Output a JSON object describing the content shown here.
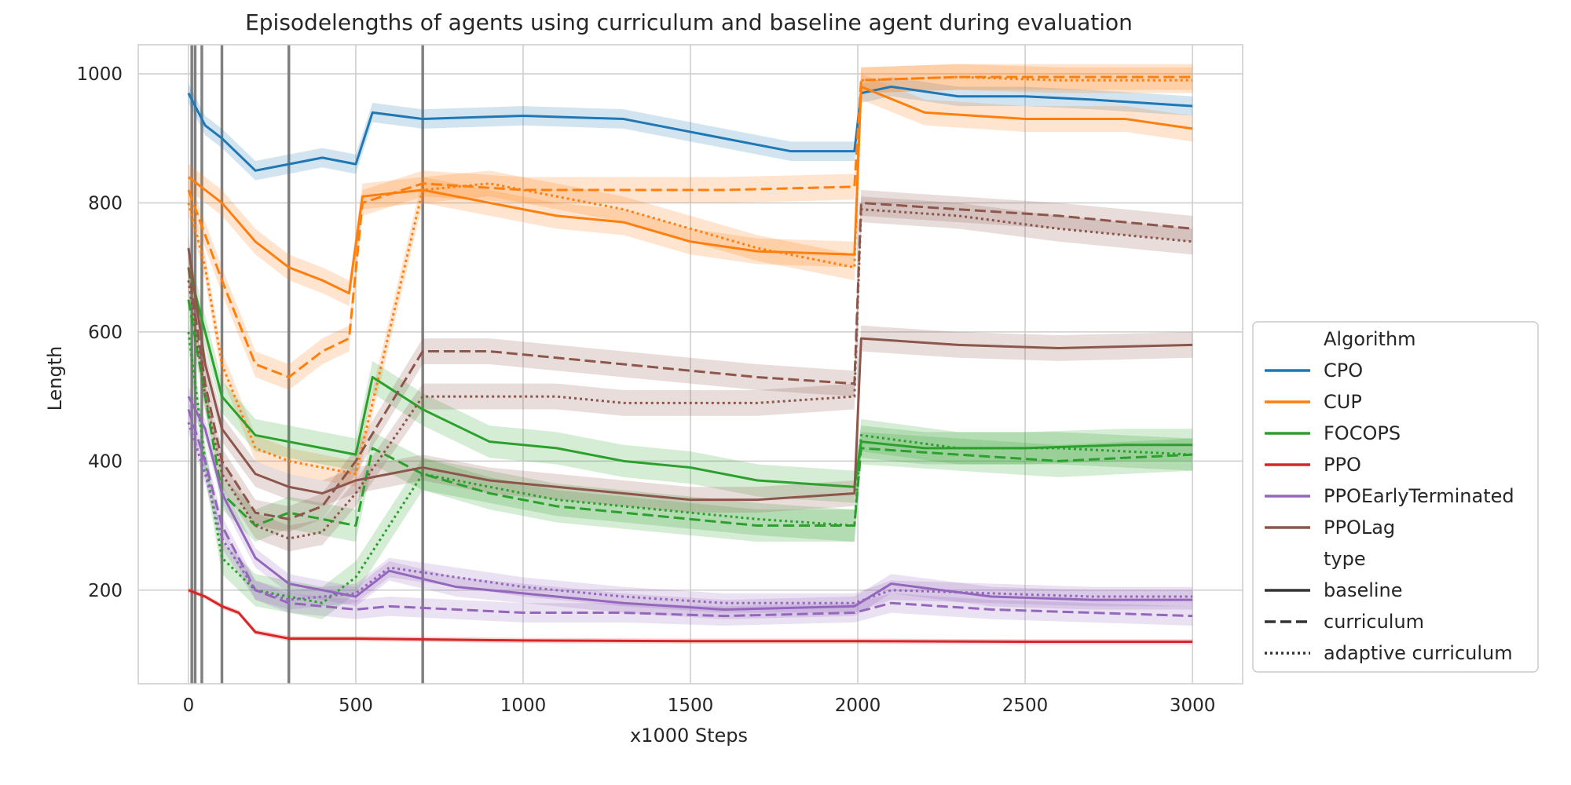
{
  "chart_data": {
    "type": "line",
    "title": "Episodelengths of agents using curriculum and baseline agent during evaluation",
    "xlabel": "x1000 Steps",
    "ylabel": "Length",
    "xlim": [
      -150,
      3150
    ],
    "ylim": [
      55,
      1045
    ],
    "xticks": [
      0,
      500,
      1000,
      1500,
      2000,
      2500,
      3000
    ],
    "yticks": [
      200,
      400,
      600,
      800,
      1000
    ],
    "grid": true,
    "legend_position": "right",
    "vertical_markers": [
      10,
      20,
      40,
      100,
      300,
      700
    ],
    "legend": {
      "hue_title": "Algorithm",
      "style_title": "type",
      "algorithms": [
        "CPO",
        "CUP",
        "FOCOPS",
        "PPO",
        "PPOEarlyTerminated",
        "PPOLag"
      ],
      "types": [
        "baseline",
        "curriculum",
        "adaptive curriculum"
      ]
    },
    "colors": {
      "CPO": "#1f77b4",
      "CUP": "#ff7f0e",
      "FOCOPS": "#2ca02c",
      "PPO": "#d62728",
      "PPOEarlyTerminated": "#9467bd",
      "PPOLag": "#8c564b"
    },
    "series": [
      {
        "name": "CPO",
        "type": "baseline",
        "x": [
          0,
          50,
          100,
          200,
          300,
          400,
          500,
          550,
          700,
          1000,
          1300,
          1600,
          1800,
          1990,
          2010,
          2100,
          2300,
          2500,
          2700,
          3000
        ],
        "y": [
          970,
          920,
          900,
          850,
          860,
          870,
          860,
          940,
          930,
          935,
          930,
          900,
          880,
          880,
          970,
          980,
          965,
          965,
          960,
          950
        ],
        "band": 15
      },
      {
        "name": "CUP",
        "type": "baseline",
        "x": [
          0,
          50,
          100,
          200,
          300,
          400,
          480,
          520,
          700,
          900,
          1100,
          1300,
          1500,
          1700,
          1990,
          2010,
          2200,
          2500,
          2800,
          3000
        ],
        "y": [
          840,
          820,
          800,
          740,
          700,
          680,
          660,
          810,
          820,
          800,
          780,
          770,
          740,
          725,
          720,
          980,
          940,
          930,
          930,
          915
        ],
        "band": 20
      },
      {
        "name": "CUP",
        "type": "curriculum",
        "x": [
          0,
          50,
          100,
          200,
          300,
          400,
          480,
          520,
          700,
          1000,
          1300,
          1600,
          1990,
          2010,
          2300,
          2600,
          3000
        ],
        "y": [
          820,
          750,
          680,
          550,
          530,
          570,
          590,
          800,
          830,
          820,
          820,
          820,
          825,
          990,
          995,
          995,
          995
        ],
        "band": 20
      },
      {
        "name": "CUP",
        "type": "adaptive curriculum",
        "x": [
          0,
          50,
          100,
          200,
          300,
          400,
          500,
          700,
          900,
          1100,
          1300,
          1500,
          1700,
          1990,
          2010,
          2300,
          2600,
          3000
        ],
        "y": [
          800,
          700,
          550,
          420,
          400,
          390,
          380,
          820,
          830,
          810,
          790,
          760,
          730,
          700,
          990,
          995,
          990,
          990
        ],
        "band": 20
      },
      {
        "name": "FOCOPS",
        "type": "baseline",
        "x": [
          0,
          50,
          100,
          200,
          300,
          400,
          500,
          550,
          700,
          900,
          1100,
          1300,
          1500,
          1700,
          1990,
          2010,
          2200,
          2500,
          2800,
          3000
        ],
        "y": [
          700,
          600,
          500,
          440,
          430,
          420,
          410,
          530,
          480,
          430,
          420,
          400,
          390,
          370,
          360,
          430,
          420,
          420,
          425,
          425
        ],
        "band": 25
      },
      {
        "name": "FOCOPS",
        "type": "curriculum",
        "x": [
          0,
          50,
          100,
          200,
          300,
          400,
          500,
          550,
          700,
          900,
          1100,
          1300,
          1500,
          1700,
          1990,
          2010,
          2300,
          2600,
          3000
        ],
        "y": [
          650,
          500,
          350,
          300,
          320,
          310,
          300,
          420,
          380,
          350,
          330,
          320,
          310,
          300,
          300,
          420,
          410,
          400,
          410
        ],
        "band": 25
      },
      {
        "name": "FOCOPS",
        "type": "adaptive curriculum",
        "x": [
          0,
          50,
          100,
          200,
          300,
          400,
          500,
          700,
          900,
          1100,
          1300,
          1500,
          1700,
          1990,
          2010,
          2300,
          2600,
          3000
        ],
        "y": [
          600,
          400,
          250,
          200,
          190,
          180,
          220,
          380,
          360,
          340,
          330,
          320,
          310,
          300,
          440,
          420,
          420,
          410
        ],
        "band": 25
      },
      {
        "name": "PPO",
        "type": "baseline",
        "x": [
          0,
          50,
          100,
          150,
          200,
          300,
          500,
          1000,
          1500,
          2000,
          2500,
          3000
        ],
        "y": [
          200,
          190,
          175,
          165,
          135,
          125,
          125,
          122,
          121,
          121,
          120,
          120
        ],
        "band": 4
      },
      {
        "name": "PPOEarlyTerminated",
        "type": "baseline",
        "x": [
          0,
          50,
          100,
          200,
          300,
          400,
          500,
          600,
          800,
          1000,
          1300,
          1600,
          1990,
          2100,
          2400,
          2700,
          3000
        ],
        "y": [
          500,
          450,
          350,
          250,
          210,
          200,
          190,
          230,
          205,
          195,
          180,
          170,
          175,
          210,
          190,
          185,
          185
        ],
        "band": 15
      },
      {
        "name": "PPOEarlyTerminated",
        "type": "curriculum",
        "x": [
          0,
          50,
          100,
          200,
          300,
          400,
          500,
          600,
          800,
          1000,
          1300,
          1600,
          1990,
          2100,
          2400,
          2700,
          3000
        ],
        "y": [
          480,
          400,
          300,
          200,
          180,
          175,
          170,
          175,
          170,
          165,
          165,
          160,
          165,
          180,
          170,
          165,
          160
        ],
        "band": 15
      },
      {
        "name": "PPOEarlyTerminated",
        "type": "adaptive curriculum",
        "x": [
          0,
          50,
          100,
          200,
          300,
          400,
          500,
          600,
          800,
          1000,
          1300,
          1600,
          1990,
          2100,
          2400,
          2700,
          3000
        ],
        "y": [
          460,
          380,
          280,
          200,
          185,
          190,
          195,
          235,
          220,
          205,
          190,
          180,
          180,
          200,
          195,
          190,
          190
        ],
        "band": 15
      },
      {
        "name": "PPOLag",
        "type": "baseline",
        "x": [
          0,
          50,
          100,
          200,
          300,
          400,
          500,
          700,
          900,
          1100,
          1300,
          1500,
          1700,
          1990,
          2010,
          2300,
          2600,
          3000
        ],
        "y": [
          730,
          550,
          450,
          380,
          360,
          350,
          370,
          390,
          370,
          360,
          350,
          340,
          340,
          350,
          590,
          580,
          575,
          580
        ],
        "band": 20
      },
      {
        "name": "PPOLag",
        "type": "curriculum",
        "x": [
          0,
          50,
          100,
          200,
          300,
          400,
          500,
          700,
          900,
          1100,
          1300,
          1500,
          1700,
          1990,
          2010,
          2300,
          2600,
          3000
        ],
        "y": [
          700,
          520,
          400,
          320,
          310,
          330,
          400,
          570,
          570,
          560,
          550,
          540,
          530,
          520,
          800,
          790,
          780,
          760
        ],
        "band": 20
      },
      {
        "name": "PPOLag",
        "type": "adaptive curriculum",
        "x": [
          0,
          50,
          100,
          200,
          300,
          400,
          500,
          700,
          900,
          1100,
          1300,
          1500,
          1700,
          1990,
          2010,
          2300,
          2600,
          3000
        ],
        "y": [
          680,
          500,
          380,
          300,
          280,
          290,
          350,
          500,
          500,
          500,
          490,
          490,
          490,
          500,
          790,
          780,
          760,
          740
        ],
        "band": 20
      }
    ]
  }
}
